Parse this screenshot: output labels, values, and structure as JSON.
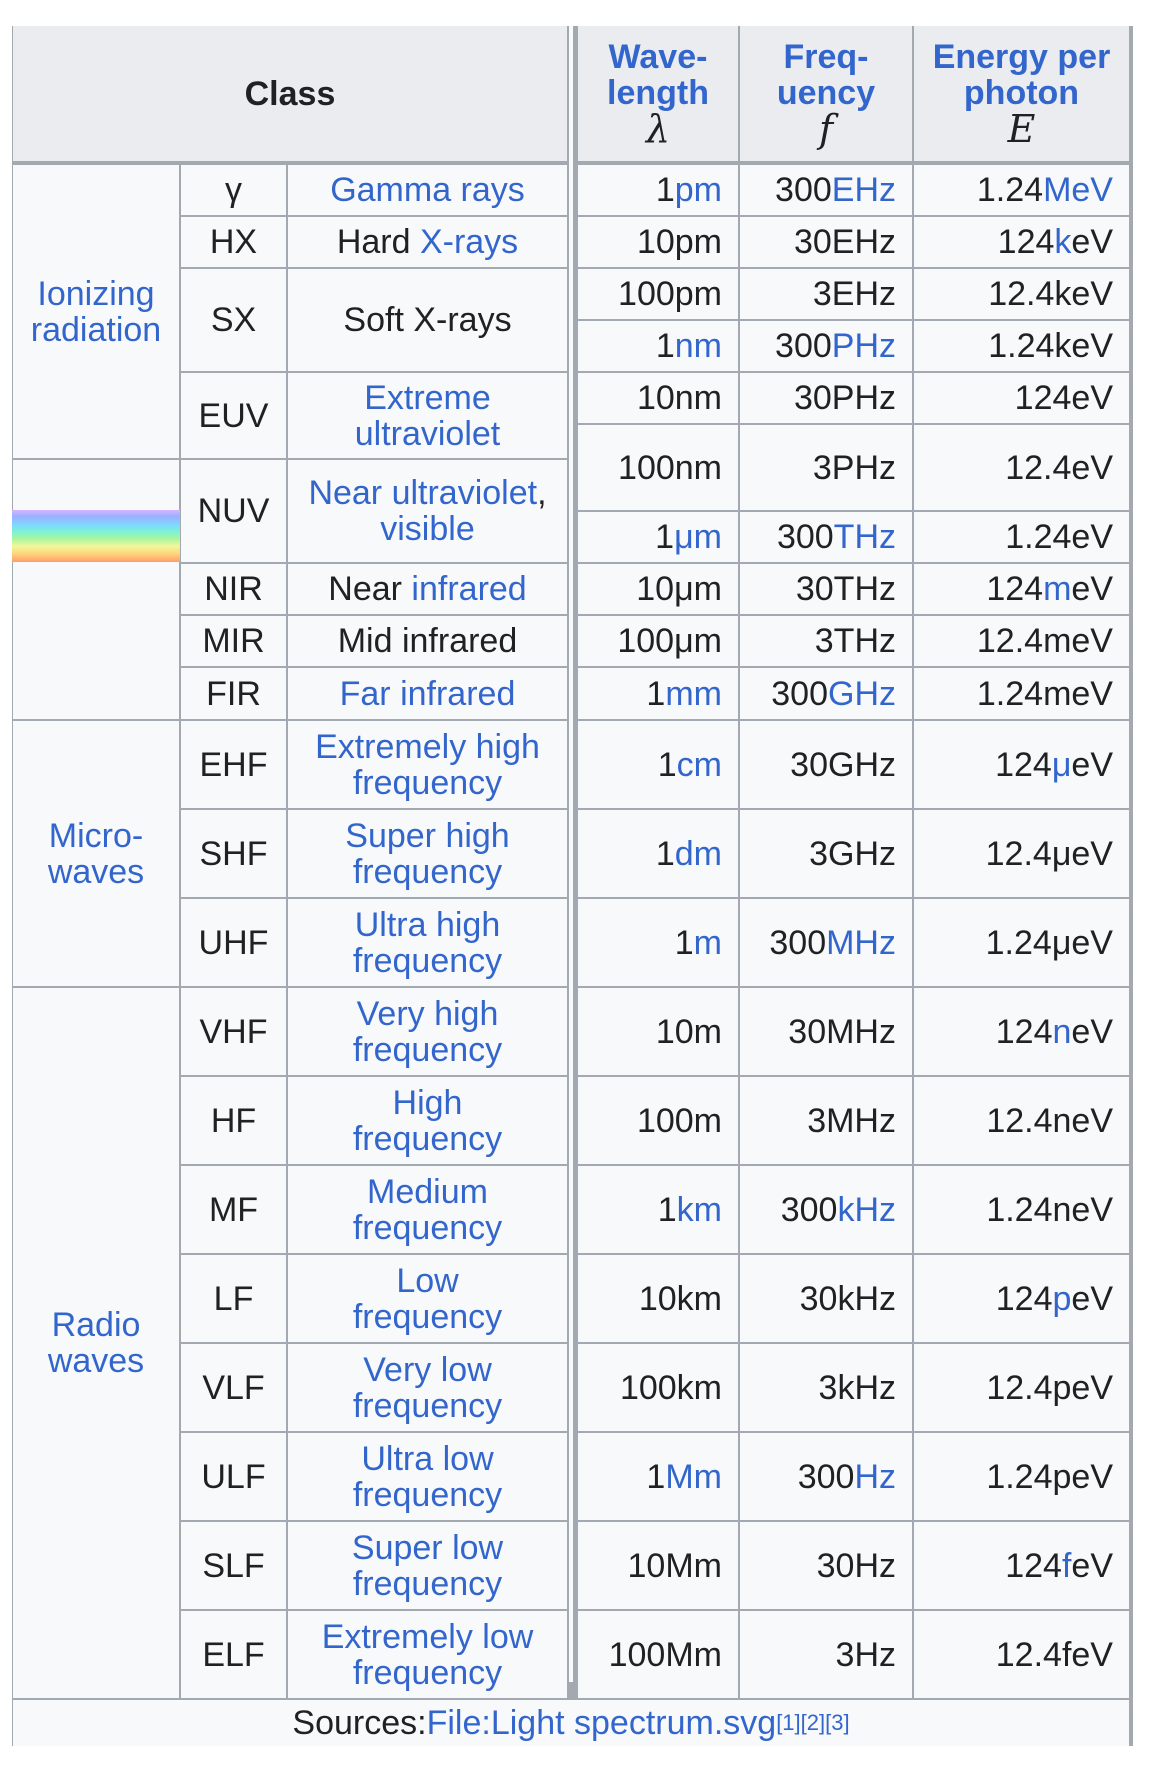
{
  "header": {
    "class": "Class",
    "wavelength_a": "Wave-",
    "wavelength_b": "length",
    "wavelength_sym": "λ",
    "frequency_a": "Freq-",
    "frequency_b": "uency",
    "frequency_sym": "f",
    "energy_a": "Energy per",
    "energy_b": "photon",
    "energy_sym": "E"
  },
  "groups": {
    "ionizing_a": "Ionizing",
    "ionizing_b": "radiation",
    "microwaves_a": "Micro-",
    "microwaves_b": "waves",
    "radio_a": "Radio",
    "radio_b": "waves"
  },
  "bands": [
    {
      "abbr": "γ",
      "name_a": "Gamma rays",
      "name_b": ""
    },
    {
      "abbr": "HX",
      "name_a": "Hard ",
      "name_b": "X-rays"
    },
    {
      "abbr": "SX",
      "name_a": "Soft X-rays",
      "name_b": ""
    },
    {
      "abbr": "EUV",
      "name_a": "Extreme",
      "name_b": "ultraviolet"
    },
    {
      "abbr": "NUV",
      "name_a": "Near ultraviolet",
      "name_b": ", ",
      "name_c": "visible"
    },
    {
      "abbr": "NIR",
      "name_a": "Near ",
      "name_b": "infrared"
    },
    {
      "abbr": "MIR",
      "name_a": "Mid infrared",
      "name_b": ""
    },
    {
      "abbr": "FIR",
      "name_a": "Far infrared",
      "name_b": ""
    },
    {
      "abbr": "EHF",
      "name_a": "Extremely high",
      "name_b": "frequency"
    },
    {
      "abbr": "SHF",
      "name_a": "Super high",
      "name_b": "frequency"
    },
    {
      "abbr": "UHF",
      "name_a": "Ultra high",
      "name_b": "frequency"
    },
    {
      "abbr": "VHF",
      "name_a": "Very high",
      "name_b": "frequency"
    },
    {
      "abbr": "HF",
      "name_a": "High",
      "name_b": "frequency"
    },
    {
      "abbr": "MF",
      "name_a": "Medium",
      "name_b": "frequency"
    },
    {
      "abbr": "LF",
      "name_a": "Low",
      "name_b": "frequency"
    },
    {
      "abbr": "VLF",
      "name_a": "Very low",
      "name_b": "frequency"
    },
    {
      "abbr": "ULF",
      "name_a": "Ultra low",
      "name_b": "frequency"
    },
    {
      "abbr": "SLF",
      "name_a": "Super low",
      "name_b": "frequency"
    },
    {
      "abbr": "ELF",
      "name_a": "Extremely low",
      "name_b": "frequency"
    }
  ],
  "values": [
    {
      "wl_num": "1 ",
      "wl_unit": "pm",
      "wl_link": true,
      "f_num": "300 ",
      "f_unit": "EHz",
      "f_link": true,
      "e_num": "1.24 ",
      "e_pre": "",
      "e_unit": "MeV",
      "e_link": true
    },
    {
      "wl_num": "10 ",
      "wl_unit": "pm",
      "wl_link": false,
      "f_num": "30 ",
      "f_unit": "EHz",
      "f_link": false,
      "e_num": "124 ",
      "e_pre": "k",
      "e_unit": "eV",
      "e_link": "pre"
    },
    {
      "wl_num": "100 ",
      "wl_unit": "pm",
      "wl_link": false,
      "f_num": "3 ",
      "f_unit": "EHz",
      "f_link": false,
      "e_num": "12.4 ",
      "e_pre": "",
      "e_unit": "keV",
      "e_link": false
    },
    {
      "wl_num": "1 ",
      "wl_unit": "nm",
      "wl_link": true,
      "f_num": "300 ",
      "f_unit": "PHz",
      "f_link": true,
      "e_num": "1.24 ",
      "e_pre": "",
      "e_unit": "keV",
      "e_link": false
    },
    {
      "wl_num": "10 ",
      "wl_unit": "nm",
      "wl_link": false,
      "f_num": "30 ",
      "f_unit": "PHz",
      "f_link": false,
      "e_num": "124 ",
      "e_pre": "",
      "e_unit": "eV",
      "e_link": false
    },
    {
      "wl_num": "100 ",
      "wl_unit": "nm",
      "wl_link": false,
      "f_num": "3 ",
      "f_unit": "PHz",
      "f_link": false,
      "e_num": "12.4 ",
      "e_pre": "",
      "e_unit": "eV",
      "e_link": false
    },
    {
      "wl_num": "1 ",
      "wl_unit": "μm",
      "wl_link": true,
      "f_num": "300 ",
      "f_unit": "THz",
      "f_link": true,
      "e_num": "1.24 ",
      "e_pre": "",
      "e_unit": "eV",
      "e_link": false
    },
    {
      "wl_num": "10 ",
      "wl_unit": "μm",
      "wl_link": false,
      "f_num": "30 ",
      "f_unit": "THz",
      "f_link": false,
      "e_num": "124 ",
      "e_pre": "m",
      "e_unit": "eV",
      "e_link": "pre"
    },
    {
      "wl_num": "100 ",
      "wl_unit": "μm",
      "wl_link": false,
      "f_num": "3 ",
      "f_unit": "THz",
      "f_link": false,
      "e_num": "12.4 ",
      "e_pre": "",
      "e_unit": "meV",
      "e_link": false
    },
    {
      "wl_num": "1 ",
      "wl_unit": "mm",
      "wl_link": true,
      "f_num": "300 ",
      "f_unit": "GHz",
      "f_link": true,
      "e_num": "1.24 ",
      "e_pre": "",
      "e_unit": "meV",
      "e_link": false
    },
    {
      "wl_num": "1 ",
      "wl_unit": "cm",
      "wl_link": true,
      "f_num": "30 ",
      "f_unit": "GHz",
      "f_link": false,
      "e_num": "124 ",
      "e_pre": "μ",
      "e_unit": "eV",
      "e_link": "pre"
    },
    {
      "wl_num": "1 ",
      "wl_unit": "dm",
      "wl_link": true,
      "f_num": "3 ",
      "f_unit": "GHz",
      "f_link": false,
      "e_num": "12.4 ",
      "e_pre": "",
      "e_unit": "μeV",
      "e_link": false
    },
    {
      "wl_num": "1 ",
      "wl_unit": "m",
      "wl_link": true,
      "f_num": "300 ",
      "f_unit": "MHz",
      "f_link": true,
      "e_num": "1.24 ",
      "e_pre": "",
      "e_unit": "μeV",
      "e_link": false
    },
    {
      "wl_num": "10 ",
      "wl_unit": "m",
      "wl_link": false,
      "f_num": "30 ",
      "f_unit": "MHz",
      "f_link": false,
      "e_num": "124 ",
      "e_pre": "n",
      "e_unit": "eV",
      "e_link": "pre"
    },
    {
      "wl_num": "100 ",
      "wl_unit": "m",
      "wl_link": false,
      "f_num": "3 ",
      "f_unit": "MHz",
      "f_link": false,
      "e_num": "12.4 ",
      "e_pre": "",
      "e_unit": "neV",
      "e_link": false
    },
    {
      "wl_num": "1 ",
      "wl_unit": "km",
      "wl_link": true,
      "f_num": "300 ",
      "f_unit": "kHz",
      "f_link": true,
      "e_num": "1.24 ",
      "e_pre": "",
      "e_unit": "neV",
      "e_link": false
    },
    {
      "wl_num": "10 ",
      "wl_unit": "km",
      "wl_link": false,
      "f_num": "30 ",
      "f_unit": "kHz",
      "f_link": false,
      "e_num": "124 ",
      "e_pre": "p",
      "e_unit": "eV",
      "e_link": "pre"
    },
    {
      "wl_num": "100 ",
      "wl_unit": "km",
      "wl_link": false,
      "f_num": "3 ",
      "f_unit": "kHz",
      "f_link": false,
      "e_num": "12.4 ",
      "e_pre": "",
      "e_unit": "peV",
      "e_link": false
    },
    {
      "wl_num": "1 ",
      "wl_unit": "Mm",
      "wl_link": true,
      "f_num": "300 ",
      "f_unit": "Hz",
      "f_link": true,
      "e_num": "1.24 ",
      "e_pre": "",
      "e_unit": "peV",
      "e_link": false
    },
    {
      "wl_num": "10 ",
      "wl_unit": "Mm",
      "wl_link": false,
      "f_num": "30 ",
      "f_unit": "Hz",
      "f_link": false,
      "e_num": "124 ",
      "e_pre": "f",
      "e_unit": "eV",
      "e_link": "pre"
    },
    {
      "wl_num": "100 ",
      "wl_unit": "Mm",
      "wl_link": false,
      "f_num": "3 ",
      "f_unit": "Hz",
      "f_link": false,
      "e_num": "12.4 ",
      "e_pre": "",
      "e_unit": "feV",
      "e_link": false
    }
  ],
  "footer": {
    "prefix": "Sources: ",
    "link": "File:Light spectrum.svg",
    "ref1": "[1]",
    "ref2": "[2]",
    "ref3": "[3]"
  }
}
